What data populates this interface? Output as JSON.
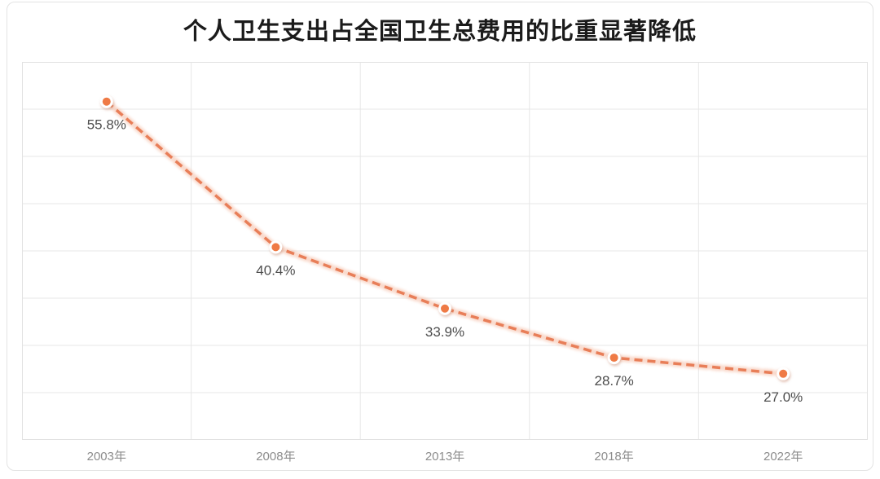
{
  "page": {
    "title": "个人卫生支出占全国卫生总费用的比重显著降低"
  },
  "colors": {
    "background": "#ffffff",
    "frame_border": "#e3e3e3",
    "title_text": "#1b1b1b",
    "grid": "#e7e7e7",
    "plot_border": "#e2e2e2",
    "line": "#e87e58",
    "line_glow": "#f4b9a0",
    "marker_fill": "#ef7a45",
    "marker_ring": "#ffffff",
    "marker_shadow": "#c98a6f",
    "data_label_text": "#4d4d4d",
    "axis_label_text": "#8c8c8c"
  },
  "chart_data": {
    "type": "line",
    "line_style": "dashed",
    "title": "个人卫生支出占全国卫生总费用的比重显著降低",
    "categories": [
      "2003年",
      "2008年",
      "2013年",
      "2018年",
      "2022年"
    ],
    "values": [
      55.8,
      40.4,
      33.9,
      28.7,
      27.0
    ],
    "data_labels": [
      "55.8%",
      "40.4%",
      "33.9%",
      "28.7%",
      "27.0%"
    ],
    "xlabel": "",
    "ylabel": "",
    "ylim": [
      20,
      60
    ],
    "y_gridline_step": 5,
    "y_axis_labels_visible": false,
    "grid": "on",
    "legend": "none",
    "data_label_position": "below"
  }
}
